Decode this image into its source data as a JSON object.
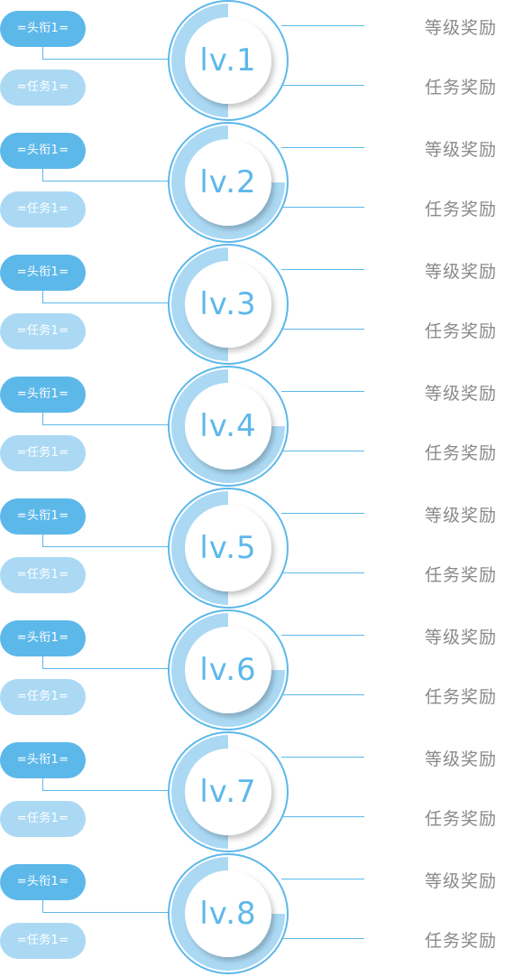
{
  "colors": {
    "accent": "#5db8ea",
    "accent_light": "#abd9f4",
    "reward_text": "#8a8a8a"
  },
  "levels": [
    {
      "label": "lv.1",
      "title_btn": "=头衔1=",
      "task_btn": "=任务1=",
      "level_reward": "等级奖励",
      "task_reward": "任务奖励"
    },
    {
      "label": "lv.2",
      "title_btn": "=头衔1=",
      "task_btn": "=任务1=",
      "level_reward": "等级奖励",
      "task_reward": "任务奖励"
    },
    {
      "label": "lv.3",
      "title_btn": "=头衔1=",
      "task_btn": "=任务1=",
      "level_reward": "等级奖励",
      "task_reward": "任务奖励"
    },
    {
      "label": "lv.4",
      "title_btn": "=头衔1=",
      "task_btn": "=任务1=",
      "level_reward": "等级奖励",
      "task_reward": "任务奖励"
    },
    {
      "label": "lv.5",
      "title_btn": "=头衔1=",
      "task_btn": "=任务1=",
      "level_reward": "等级奖励",
      "task_reward": "任务奖励"
    },
    {
      "label": "lv.6",
      "title_btn": "=头衔1=",
      "task_btn": "=任务1=",
      "level_reward": "等级奖励",
      "task_reward": "任务奖励"
    },
    {
      "label": "lv.7",
      "title_btn": "=头衔1=",
      "task_btn": "=任务1=",
      "level_reward": "等级奖励",
      "task_reward": "任务奖励"
    },
    {
      "label": "lv.8",
      "title_btn": "=头衔1=",
      "task_btn": "=任务1=",
      "level_reward": "等级奖励",
      "task_reward": "任务奖励"
    }
  ]
}
